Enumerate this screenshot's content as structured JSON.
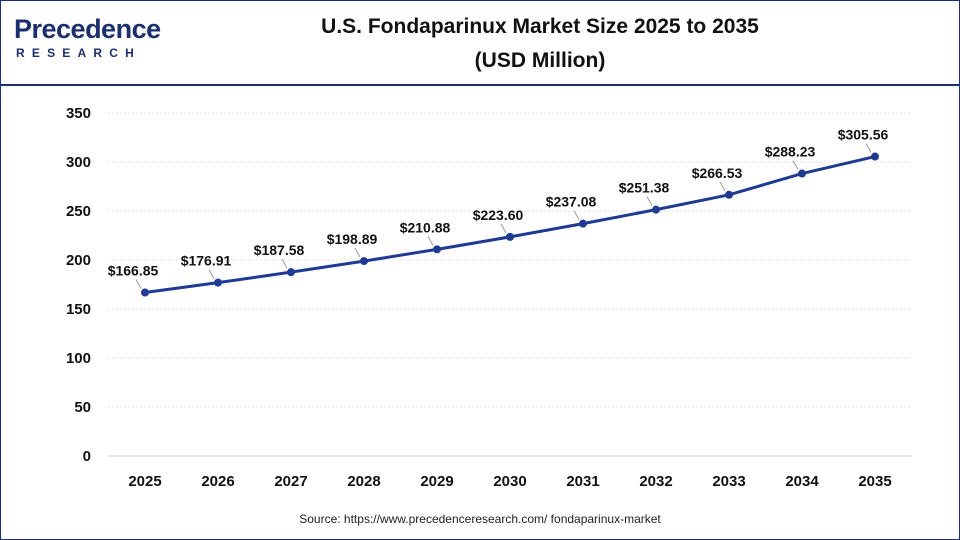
{
  "header": {
    "logo_top": "Precedence",
    "logo_bottom": "RESEARCH",
    "title_line1": "U.S. Fondaparinux Market Size 2025 to 2035",
    "title_line2": "(USD Million)"
  },
  "footer": {
    "source": "Source: https://www.precedenceresearch.com/ fondaparinux-market"
  },
  "colors": {
    "line": "#1f3a93",
    "brand": "#1b2f6e",
    "grid": "#e2e2e2"
  },
  "chart_data": {
    "type": "line",
    "title": "U.S. Fondaparinux Market Size 2025 to 2035 (USD Million)",
    "categories": [
      "2025",
      "2026",
      "2027",
      "2028",
      "2029",
      "2030",
      "2031",
      "2032",
      "2033",
      "2034",
      "2035"
    ],
    "values": [
      166.85,
      176.91,
      187.58,
      198.89,
      210.88,
      223.6,
      237.08,
      251.38,
      266.53,
      288.23,
      305.56
    ],
    "data_labels": [
      "$166.85",
      "$176.91",
      "$187.58",
      "$198.89",
      "$210.88",
      "$223.60",
      "$237.08",
      "$251.38",
      "$266.53",
      "$288.23",
      "$305.56"
    ],
    "yticks": [
      0,
      50,
      100,
      150,
      200,
      250,
      300,
      350
    ],
    "ylim": [
      0,
      350
    ],
    "grid": true,
    "legend": "none"
  }
}
